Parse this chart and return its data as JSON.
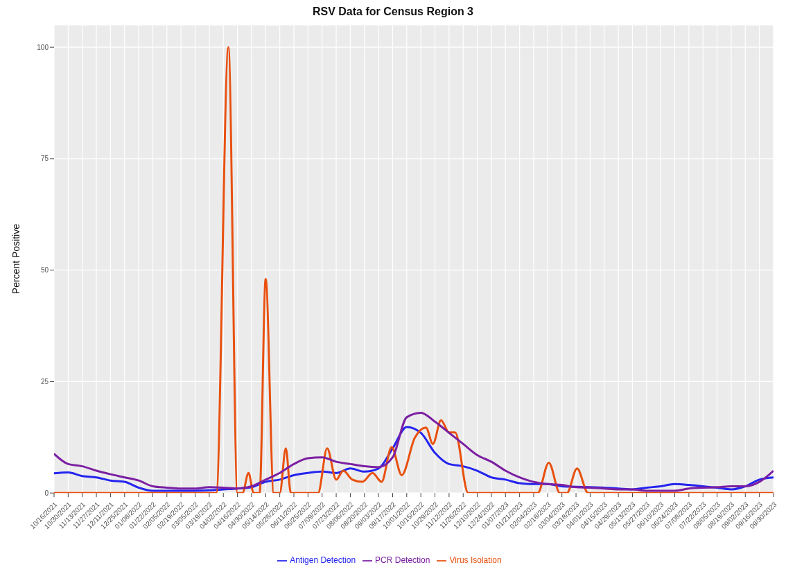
{
  "chart_data": {
    "type": "line",
    "title": "RSV Data for Census Region 3",
    "ylabel": "Percent Positive",
    "x": [
      "2021-10-16",
      "2021-10-30",
      "2021-11-13",
      "2021-11-27",
      "2021-12-11",
      "2021-12-25",
      "2022-01-08",
      "2022-01-22",
      "2022-02-05",
      "2022-02-19",
      "2022-03-05",
      "2022-03-19",
      "2022-04-02",
      "2022-04-16",
      "2022-04-30",
      "2022-05-14",
      "2022-05-28",
      "2022-06-11",
      "2022-06-25",
      "2022-07-09",
      "2022-07-23",
      "2022-08-06",
      "2022-08-20",
      "2022-09-03",
      "2022-09-17",
      "2022-10-01",
      "2022-10-15",
      "2022-10-29",
      "2022-11-12",
      "2022-11-26",
      "2022-12-10",
      "2022-12-24",
      "2023-01-07",
      "2023-01-21",
      "2023-02-04",
      "2023-02-18",
      "2023-03-04",
      "2023-03-18",
      "2023-04-01",
      "2023-04-15",
      "2023-04-29",
      "2023-05-13",
      "2023-05-27",
      "2023-06-10",
      "2023-06-24",
      "2023-07-08",
      "2023-07-22",
      "2023-08-05",
      "2023-08-19",
      "2023-09-02",
      "2023-09-16",
      "2023-09-30"
    ],
    "series": [
      {
        "name": "Antigen Detection",
        "color": "#2424f0",
        "values": [
          4.4,
          4.6,
          3.8,
          3.5,
          2.8,
          2.5,
          1.2,
          0.5,
          0.5,
          0.5,
          0.5,
          0.6,
          0.8,
          1.0,
          1.3,
          2.5,
          3.0,
          4.0,
          4.5,
          4.8,
          4.5,
          5.5,
          4.8,
          5.5,
          10,
          14.8,
          13.5,
          9,
          6.5,
          6,
          5,
          3.5,
          3,
          2.2,
          2,
          2,
          1.5,
          1.4,
          1.3,
          1.2,
          1,
          0.8,
          1.2,
          1.5,
          2,
          1.8,
          1.5,
          1.2,
          0.8,
          1.5,
          3,
          3.5
        ]
      },
      {
        "name": "Virus Isolation",
        "color": "#e8500f",
        "x": [
          "2021-10-16",
          "2022-03-26",
          "2022-04-07",
          "2022-04-16",
          "2022-04-21",
          "2022-04-27",
          "2022-05-02",
          "2022-05-08",
          "2022-05-14",
          "2022-05-22",
          "2022-05-28",
          "2022-06-03",
          "2022-06-08",
          "2022-07-05",
          "2022-07-14",
          "2022-07-23",
          "2022-07-30",
          "2022-08-08",
          "2022-08-18",
          "2022-08-28",
          "2022-09-06",
          "2022-09-16",
          "2022-09-26",
          "2022-10-09",
          "2022-10-20",
          "2022-10-27",
          "2022-11-04",
          "2022-11-12",
          "2022-11-18",
          "2022-12-01",
          "2023-02-08",
          "2023-02-19",
          "2023-03-02",
          "2023-03-09",
          "2023-03-19",
          "2023-03-30",
          "2023-09-30"
        ],
        "values": [
          0,
          0,
          100,
          0,
          0,
          4.5,
          0,
          0,
          48,
          0,
          0,
          10,
          0,
          0,
          10,
          3,
          5,
          3,
          2.5,
          4.5,
          2.5,
          10.3,
          4,
          12.4,
          14.7,
          11,
          16.3,
          13.6,
          13.6,
          0,
          0,
          6.8,
          0,
          0,
          5.5,
          0,
          0
        ]
      },
      {
        "name": "PCR Detection",
        "color": "#7b1fa2",
        "values": [
          8.8,
          6.5,
          6,
          5,
          4.2,
          3.5,
          2.8,
          1.5,
          1.2,
          1,
          1,
          1.3,
          1.2,
          1,
          1.5,
          3,
          4.5,
          6.5,
          7.8,
          8,
          7,
          6.5,
          6,
          5.8,
          8,
          17,
          18,
          16,
          13.5,
          11,
          8.5,
          7,
          5,
          3.5,
          2.5,
          2,
          1.8,
          1.3,
          1.2,
          1,
          0.8,
          0.8,
          0.5,
          0.5,
          0.5,
          1,
          1.2,
          1.3,
          1.5,
          1.5,
          2.5,
          5
        ]
      }
    ],
    "xlim": [
      "2021-10-16",
      "2023-09-30"
    ],
    "xticks": [
      {
        "value": "2021-10-16",
        "label": "10/16/2021"
      },
      {
        "value": "2021-10-30",
        "label": "10/30/2021"
      },
      {
        "value": "2021-11-13",
        "label": "11/13/2021"
      },
      {
        "value": "2021-11-27",
        "label": "11/27/2021"
      },
      {
        "value": "2021-12-11",
        "label": "12/11/2021"
      },
      {
        "value": "2021-12-25",
        "label": "12/25/2021"
      },
      {
        "value": "2022-01-08",
        "label": "01/08/2022"
      },
      {
        "value": "2022-01-22",
        "label": "01/22/2022"
      },
      {
        "value": "2022-02-05",
        "label": "02/05/2022"
      },
      {
        "value": "2022-02-19",
        "label": "02/19/2022"
      },
      {
        "value": "2022-03-05",
        "label": "03/05/2022"
      },
      {
        "value": "2022-03-19",
        "label": "03/19/2022"
      },
      {
        "value": "2022-04-02",
        "label": "04/02/2022"
      },
      {
        "value": "2022-04-16",
        "label": "04/16/2022"
      },
      {
        "value": "2022-04-30",
        "label": "04/30/2022"
      },
      {
        "value": "2022-05-14",
        "label": "05/14/2022"
      },
      {
        "value": "2022-05-28",
        "label": "05/28/2022"
      },
      {
        "value": "2022-06-11",
        "label": "06/11/2022"
      },
      {
        "value": "2022-06-25",
        "label": "06/25/2022"
      },
      {
        "value": "2022-07-09",
        "label": "07/09/2022"
      },
      {
        "value": "2022-07-23",
        "label": "07/23/2022"
      },
      {
        "value": "2022-08-06",
        "label": "08/06/2022"
      },
      {
        "value": "2022-08-20",
        "label": "08/20/2022"
      },
      {
        "value": "2022-09-03",
        "label": "09/03/2022"
      },
      {
        "value": "2022-09-17",
        "label": "09/17/2022"
      },
      {
        "value": "2022-10-01",
        "label": "10/01/2022"
      },
      {
        "value": "2022-10-15",
        "label": "10/15/2022"
      },
      {
        "value": "2022-10-29",
        "label": "10/29/2022"
      },
      {
        "value": "2022-11-12",
        "label": "11/12/2022"
      },
      {
        "value": "2022-11-26",
        "label": "11/26/2022"
      },
      {
        "value": "2022-12-10",
        "label": "12/10/2022"
      },
      {
        "value": "2022-12-24",
        "label": "12/24/2022"
      },
      {
        "value": "2023-01-07",
        "label": "01/07/2023"
      },
      {
        "value": "2023-01-21",
        "label": "01/21/2023"
      },
      {
        "value": "2023-02-04",
        "label": "02/04/2023"
      },
      {
        "value": "2023-02-18",
        "label": "02/18/2023"
      },
      {
        "value": "2023-03-04",
        "label": "03/04/2023"
      },
      {
        "value": "2023-03-18",
        "label": "03/18/2023"
      },
      {
        "value": "2023-04-01",
        "label": "04/01/2023"
      },
      {
        "value": "2023-04-15",
        "label": "04/15/2023"
      },
      {
        "value": "2023-04-29",
        "label": "04/29/2023"
      },
      {
        "value": "2023-05-13",
        "label": "05/13/2023"
      },
      {
        "value": "2023-05-27",
        "label": "05/27/2023"
      },
      {
        "value": "2023-06-10",
        "label": "06/10/2023"
      },
      {
        "value": "2023-06-24",
        "label": "06/24/2023"
      },
      {
        "value": "2023-07-08",
        "label": "07/08/2023"
      },
      {
        "value": "2023-07-22",
        "label": "07/22/2023"
      },
      {
        "value": "2023-08-05",
        "label": "08/05/2023"
      },
      {
        "value": "2023-08-19",
        "label": "08/19/2023"
      },
      {
        "value": "2023-09-02",
        "label": "09/02/2023"
      },
      {
        "value": "2023-09-16",
        "label": "09/16/2023"
      },
      {
        "value": "2023-09-30",
        "label": "09/30/2023"
      }
    ],
    "ylim": [
      0,
      105
    ],
    "yticks": [
      0,
      25,
      50,
      75,
      100
    ],
    "grid": true,
    "legend": "bottom",
    "marker": "none",
    "line_style": "solid"
  }
}
